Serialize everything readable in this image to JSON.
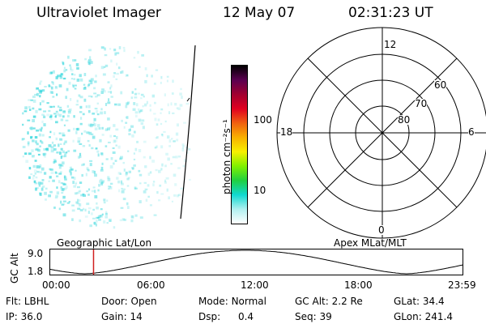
{
  "header": {
    "instrument": "Ultraviolet Imager",
    "date": "12 May 07",
    "time": "02:31:23 UT"
  },
  "image_panel": {
    "projection_label": "Geographic Lat/Lon",
    "pixel_color": "#33d6dc",
    "limb_color": "#000000"
  },
  "colorbar": {
    "unit_label": "photon cm⁻²s⁻¹",
    "ticks": [
      {
        "value": 100,
        "label": "100"
      },
      {
        "value": 10,
        "label": "10"
      }
    ],
    "scale": "log",
    "colors": [
      "#000000",
      "#5a0050",
      "#a00030",
      "#e00020",
      "#f06010",
      "#f8b000",
      "#f8f000",
      "#80f000",
      "#20d040",
      "#10d8d0",
      "#b0f0f0",
      "#ffffff"
    ]
  },
  "polar_plot": {
    "label": "Apex MLat/MLT",
    "mlt_labels": [
      {
        "value": 12,
        "label": "12"
      },
      {
        "value": 18,
        "label": "18"
      },
      {
        "value": 6,
        "label": "6"
      },
      {
        "value": 0,
        "label": "0"
      }
    ],
    "lat_labels": [
      "60",
      "70",
      "80"
    ]
  },
  "altitude_plot": {
    "ylabel": "GC Alt",
    "ymax_label": "9.0",
    "ymin_label": "1.8",
    "xticks": [
      "00:00",
      "06:00",
      "12:00",
      "18:00",
      "23:59"
    ],
    "marker_time": "02:31",
    "marker_color": "#d02020",
    "orbit_minima_hours": [
      2.0,
      20.7
    ],
    "orbit_period_hours": 18.7
  },
  "info": {
    "flt_label": "Flt:",
    "flt_value": "LBHL",
    "ip_label": "IP:",
    "ip_value": "36.0",
    "door_label": "Door:",
    "door_value": "Open",
    "gain_label": "Gain:",
    "gain_value": "14",
    "mode_label": "Mode:",
    "mode_value": "Normal",
    "dsp_label": "Dsp:",
    "dsp_value": "0.4",
    "gcalt_label": "GC Alt:",
    "gcalt_value": "2.2 Re",
    "seq_label": "Seq:",
    "seq_value": "39",
    "glat_label": "GLat:",
    "glat_value": "34.4",
    "glon_label": "GLon:",
    "glon_value": "241.4"
  }
}
